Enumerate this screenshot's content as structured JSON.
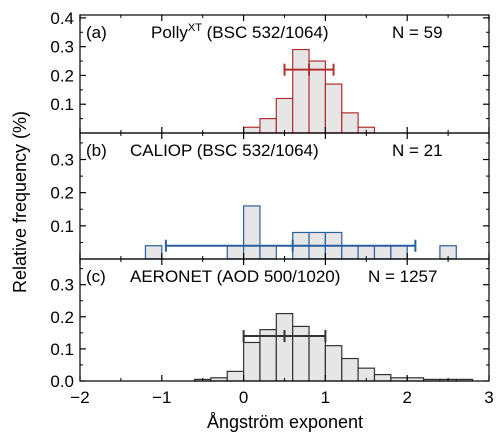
{
  "chart_data": {
    "type": "bar",
    "xlabel": "Ångström exponent",
    "ylabel": "Relative frequency (%)",
    "xlim": [
      -2,
      3
    ],
    "x_ticks": [
      "−2",
      "−1",
      "0",
      "1",
      "2",
      "3"
    ],
    "bin_width": 0.2,
    "panels": [
      {
        "label": "(a)",
        "title_main": "Polly",
        "title_sup": "XT",
        "title_rest": " (BSC 532/1064)",
        "n_text": "N = 59",
        "ylim": [
          0,
          0.41
        ],
        "y_ticks": [
          {
            "v": 0.4,
            "t": "0.4"
          },
          {
            "v": 0.3,
            "t": "0.3"
          },
          {
            "v": 0.2,
            "t": "0.2"
          },
          {
            "v": 0.1,
            "t": "0.1"
          }
        ],
        "color": "#b03030",
        "bins_left": [
          0.0,
          0.2,
          0.4,
          0.6,
          0.8,
          1.0,
          1.2,
          1.4
        ],
        "values": [
          0.02,
          0.05,
          0.12,
          0.29,
          0.25,
          0.17,
          0.07,
          0.02
        ],
        "errorbar": {
          "center": 0.8,
          "mean": 0.8,
          "low": 0.5,
          "high": 1.1,
          "y": 0.22
        }
      },
      {
        "label": "(b)",
        "title_main": "CALIOP (BSC 532/1064)",
        "title_sup": "",
        "title_rest": "",
        "n_text": "N = 21",
        "ylim": [
          0,
          0.38
        ],
        "y_ticks": [
          {
            "v": 0.3,
            "t": "0.3"
          },
          {
            "v": 0.2,
            "t": "0.2"
          },
          {
            "v": 0.1,
            "t": "0.1"
          }
        ],
        "color": "#2a5fa0",
        "bins_left": [
          -1.2,
          -0.2,
          0.0,
          0.2,
          0.6,
          0.8,
          1.0,
          1.2,
          1.4,
          1.6,
          1.8,
          2.4
        ],
        "values": [
          0.04,
          0.04,
          0.16,
          0.04,
          0.08,
          0.08,
          0.08,
          0.04,
          0.04,
          0.04,
          0.04,
          0.04
        ],
        "errorbar": {
          "center": 0.6,
          "mean": 0.6,
          "low": -0.95,
          "high": 2.1,
          "y": 0.04
        }
      },
      {
        "label": "(c)",
        "title_main": "AERONET (AOD 500/1020)",
        "title_sup": "",
        "title_rest": "",
        "n_text": "N = 1257",
        "ylim": [
          0,
          0.38
        ],
        "y_ticks": [
          {
            "v": 0.3,
            "t": "0.3"
          },
          {
            "v": 0.2,
            "t": "0.2"
          },
          {
            "v": 0.1,
            "t": "0.1"
          },
          {
            "v": 0.0,
            "t": "0.0"
          }
        ],
        "color": "#333333",
        "bins_left": [
          -0.6,
          -0.4,
          -0.2,
          0.0,
          0.2,
          0.4,
          0.6,
          0.8,
          1.0,
          1.2,
          1.4,
          1.6,
          1.8,
          2.0,
          2.2,
          2.4,
          2.6
        ],
        "values": [
          0.005,
          0.01,
          0.03,
          0.12,
          0.16,
          0.21,
          0.17,
          0.14,
          0.11,
          0.07,
          0.04,
          0.02,
          0.01,
          0.01,
          0.005,
          0.005,
          0.005
        ],
        "errorbar": {
          "center": 0.5,
          "mean": 0.5,
          "low": 0.0,
          "high": 1.0,
          "y": 0.14
        }
      }
    ]
  }
}
